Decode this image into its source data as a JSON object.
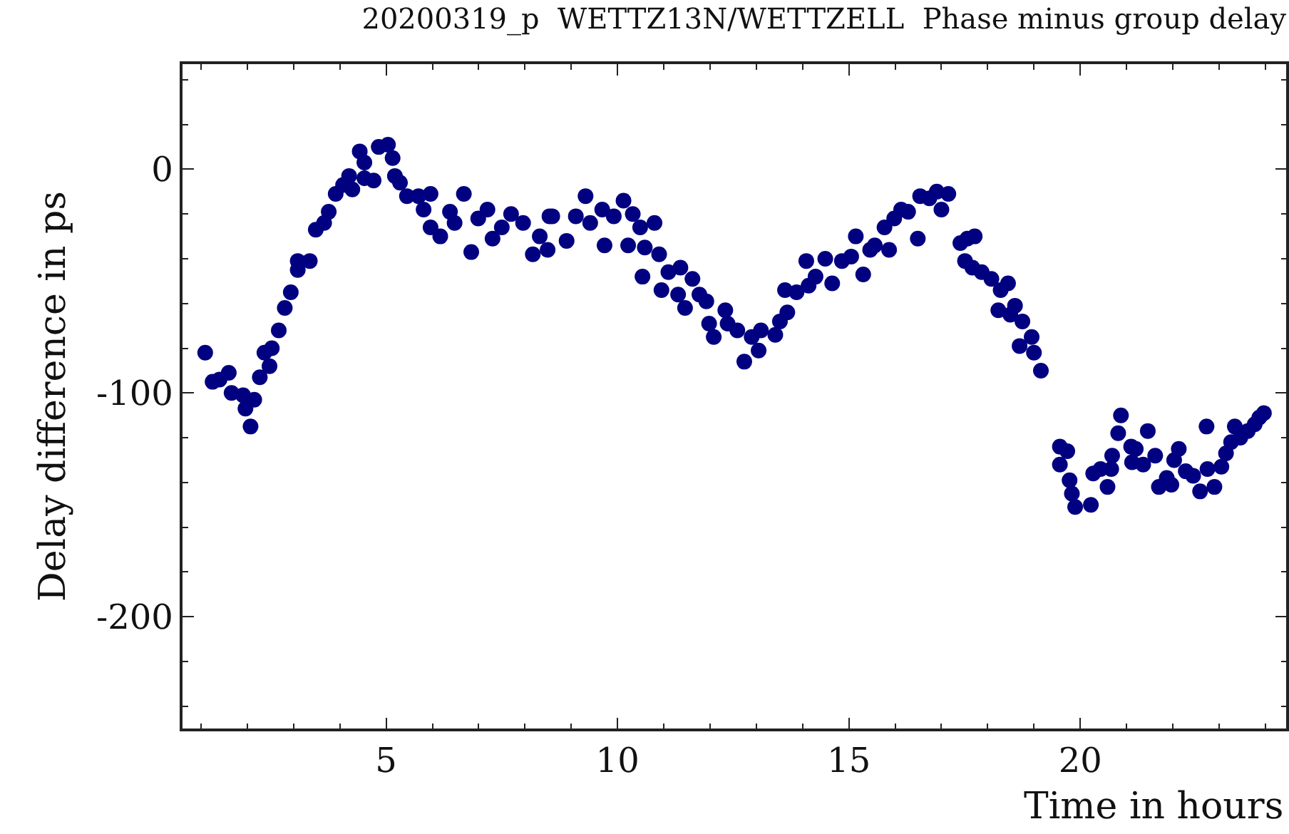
{
  "chart_data": {
    "type": "scatter",
    "title": "20200319_p  WETTZ13N/WETTZELL  Phase minus group delay",
    "xlabel": "Time in hours",
    "ylabel": "Delay difference in ps",
    "x": [
      1.09,
      1.25,
      1.4,
      1.6,
      1.66,
      1.91,
      1.96,
      2.07,
      2.15,
      2.27,
      2.37,
      2.53,
      2.48,
      2.68,
      2.81,
      2.94,
      3.09,
      3.09,
      3.35,
      3.48,
      3.66,
      3.76,
      3.91,
      4.07,
      4.2,
      4.27,
      4.43,
      4.53,
      4.53,
      4.73,
      4.84,
      5.04,
      5.14,
      5.19,
      5.3,
      5.45,
      5.7,
      5.81,
      5.96,
      5.96,
      6.17,
      6.38,
      6.48,
      6.68,
      6.84,
      6.99,
      7.19,
      7.3,
      7.5,
      7.7,
      7.96,
      8.17,
      8.32,
      8.49,
      8.53,
      8.59,
      8.9,
      9.1,
      9.31,
      9.41,
      9.67,
      9.72,
      9.92,
      10.13,
      10.23,
      10.33,
      10.49,
      10.59,
      10.8,
      10.9,
      10.54,
      10.95,
      11.1,
      11.36,
      11.31,
      11.46,
      11.62,
      11.77,
      11.92,
      11.98,
      12.08,
      12.33,
      12.38,
      12.59,
      12.74,
      12.9,
      13.05,
      13.1,
      13.41,
      13.51,
      13.67,
      13.62,
      13.87,
      14.08,
      14.13,
      14.28,
      14.49,
      14.64,
      14.85,
      15.05,
      15.15,
      15.31,
      15.46,
      15.56,
      15.77,
      15.87,
      15.98,
      16.13,
      16.28,
      16.49,
      16.54,
      16.74,
      16.9,
      17.0,
      17.15,
      17.41,
      17.56,
      17.72,
      17.51,
      17.67,
      17.87,
      18.08,
      18.28,
      18.44,
      18.23,
      18.49,
      18.59,
      18.75,
      18.69,
      18.95,
      19.0,
      19.15,
      19.56,
      19.72,
      19.56,
      19.77,
      19.82,
      19.89,
      20.23,
      20.28,
      20.44,
      20.59,
      20.67,
      20.69,
      20.82,
      20.88,
      21.1,
      21.2,
      21.12,
      21.36,
      21.46,
      21.62,
      21.7,
      21.87,
      21.97,
      22.03,
      22.13,
      22.28,
      22.44,
      22.59,
      22.75,
      22.73,
      22.9,
      23.05,
      23.15,
      23.26,
      23.34,
      23.46,
      23.62,
      23.77,
      23.87,
      23.97
    ],
    "series": [
      {
        "color": "#000080",
        "values": [
          -82,
          -95,
          -94,
          -91,
          -100,
          -101,
          -107,
          -115,
          -103,
          -93,
          -82,
          -80,
          -88,
          -72,
          -62,
          -55,
          -45,
          -41,
          -41,
          -27,
          -24,
          -19,
          -11,
          -7,
          -3,
          -9,
          8,
          3,
          -4,
          -5,
          10,
          11,
          5,
          -3,
          -6,
          -12,
          -12,
          -18,
          -11,
          -26,
          -30,
          -19,
          -24,
          -11,
          -37,
          -22,
          -18,
          -31,
          -26,
          -20,
          -24,
          -38,
          -30,
          -36,
          -21,
          -21,
          -32,
          -21,
          -12,
          -24,
          -18,
          -34,
          -21,
          -14,
          -34,
          -20,
          -26,
          -35,
          -24,
          -38,
          -48,
          -54,
          -46,
          -44,
          -56,
          -62,
          -49,
          -56,
          -59,
          -69,
          -75,
          -63,
          -69,
          -72,
          -86,
          -75,
          -81,
          -72,
          -74,
          -68,
          -64,
          -54,
          -55,
          -41,
          -52,
          -48,
          -40,
          -51,
          -41,
          -39,
          -30,
          -47,
          -36,
          -34,
          -26,
          -36,
          -22,
          -18,
          -19,
          -31,
          -12,
          -13,
          -10,
          -18,
          -11,
          -33,
          -31,
          -30,
          -41,
          -44,
          -46,
          -49,
          -54,
          -51,
          -63,
          -65,
          -61,
          -68,
          -79,
          -75,
          -82,
          -90,
          -124,
          -126,
          -132,
          -139,
          -145,
          -151,
          -150,
          -136,
          -134,
          -142,
          -134,
          -128,
          -118,
          -110,
          -124,
          -125,
          -131,
          -132,
          -117,
          -128,
          -142,
          -138,
          -141,
          -130,
          -125,
          -135,
          -137,
          -144,
          -134,
          -115,
          -142,
          -133,
          -127,
          -122,
          -115,
          -120,
          -117,
          -114,
          -111,
          -109
        ]
      }
    ],
    "marker": "circle",
    "grid": false,
    "xlim": [
      0.6,
      24.45
    ],
    "ylim": [
      -250,
      47
    ],
    "xticks": [
      {
        "value": 1,
        "label": null
      },
      {
        "value": 2,
        "label": null
      },
      {
        "value": 3,
        "label": null
      },
      {
        "value": 4,
        "label": null
      },
      5,
      {
        "value": 6,
        "label": null
      },
      {
        "value": 7,
        "label": null
      },
      {
        "value": 8,
        "label": null
      },
      {
        "value": 9,
        "label": null
      },
      10,
      {
        "value": 11,
        "label": null
      },
      {
        "value": 12,
        "label": null
      },
      {
        "value": 13,
        "label": null
      },
      {
        "value": 14,
        "label": null
      },
      15,
      {
        "value": 16,
        "label": null
      },
      {
        "value": 17,
        "label": null
      },
      {
        "value": 18,
        "label": null
      },
      {
        "value": 19,
        "label": null
      },
      20,
      {
        "value": 21,
        "label": null
      },
      {
        "value": 22,
        "label": null
      },
      {
        "value": 23,
        "label": null
      },
      {
        "value": 24,
        "label": null
      }
    ],
    "yticks": [
      {
        "value": -240,
        "label": null
      },
      {
        "value": -220,
        "label": null
      },
      -200,
      {
        "value": -180,
        "label": null
      },
      {
        "value": -160,
        "label": null
      },
      {
        "value": -140,
        "label": null
      },
      {
        "value": -120,
        "label": null
      },
      -100,
      {
        "value": -80,
        "label": null
      },
      {
        "value": -60,
        "label": null
      },
      {
        "value": -40,
        "label": null
      },
      {
        "value": -20,
        "label": null
      },
      0,
      {
        "value": 20,
        "label": null
      },
      {
        "value": 40,
        "label": null
      }
    ]
  }
}
